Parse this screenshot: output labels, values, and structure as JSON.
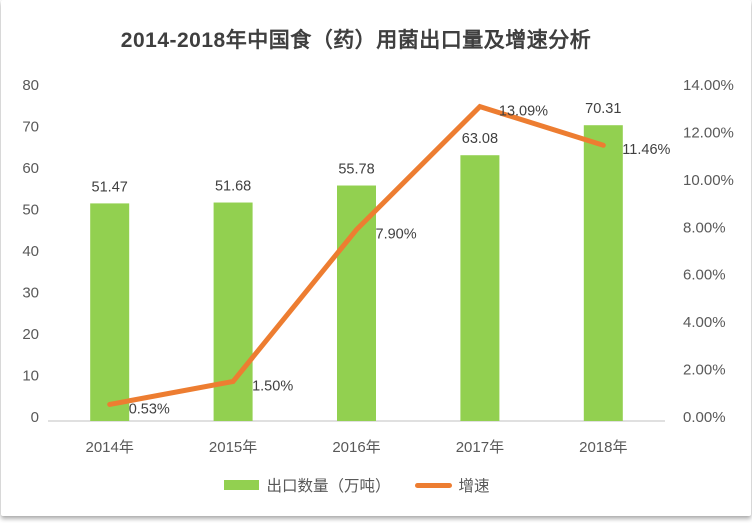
{
  "title": "2014-2018年中国食（药）用菌出口量及增速分析",
  "colors": {
    "bar": "#92D050",
    "line": "#ED7D31",
    "axis_line": "#D6D6D6",
    "axis_text": "#595959",
    "value_text": "#404040",
    "title_text": "#3F3F3F"
  },
  "chart_data": {
    "type": "combo",
    "title": "2014-2018年中国食（药）用菌出口量及增速分析",
    "categories": [
      "2014年",
      "2015年",
      "2016年",
      "2017年",
      "2018年"
    ],
    "series": [
      {
        "name": "出口数量（万吨）",
        "type": "bar",
        "axis": "left",
        "color": "#92D050",
        "values": [
          51.47,
          51.68,
          55.78,
          63.08,
          70.31
        ],
        "labels": [
          "51.47",
          "51.68",
          "55.78",
          "63.08",
          "70.31"
        ]
      },
      {
        "name": "增速",
        "type": "line",
        "axis": "right",
        "color": "#ED7D31",
        "values": [
          0.53,
          1.5,
          7.9,
          13.09,
          11.46
        ],
        "labels": [
          "0.53%",
          "1.50%",
          "7.90%",
          "13.09%",
          "11.46%"
        ]
      }
    ],
    "left_axis": {
      "min": 0,
      "max": 80,
      "step": 10,
      "ticks": [
        "0",
        "10",
        "20",
        "30",
        "40",
        "50",
        "60",
        "70",
        "80"
      ]
    },
    "right_axis": {
      "min": 0,
      "max": 14,
      "step": 2,
      "ticks": [
        "0.00%",
        "2.00%",
        "4.00%",
        "6.00%",
        "8.00%",
        "10.00%",
        "12.00%",
        "14.00%"
      ]
    },
    "xlabel": "",
    "ylabel": "",
    "grid": false,
    "legend_position": "bottom"
  },
  "legend": {
    "items": [
      {
        "label": "出口数量（万吨）",
        "swatch": "bar"
      },
      {
        "label": "增速",
        "swatch": "line"
      }
    ]
  }
}
